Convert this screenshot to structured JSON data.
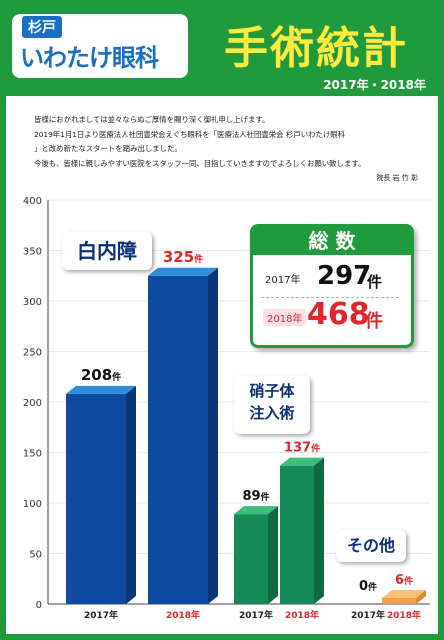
{
  "header": {
    "clinic_sub": "杉戸",
    "clinic_name": "いわたけ眼科",
    "title": "手術統計",
    "years": "2017年・2018年"
  },
  "intro": {
    "lines": [
      "皆様におかれましては並々ならぬご厚情を賜り深く御礼申し上げます。",
      "2019年1月1日より医療法人社団豊栄会えぐち眼科を「医療法人社団豊栄会 杉戸いわたけ眼科",
      "」と改め新たなスタートを踏み出しました。",
      "今後も、皆様に親しみやすい医院をスタッフ一同、目指していきますのでよろしくお願い致します。"
    ],
    "signature": "院長 岩 竹 彰"
  },
  "totals": {
    "title": "総 数",
    "rows": [
      {
        "year": "2017年",
        "value": "297",
        "unit": "件"
      },
      {
        "year": "2018年",
        "value": "468",
        "unit": "件"
      }
    ]
  },
  "colors": {
    "green": "#1f9a3c",
    "blue_front": "#0d4aa0",
    "blue_top": "#2f8ed8",
    "teal_front": "#138a57",
    "teal_top": "#3cbf7b",
    "orange": "#f0a040",
    "red": "#e3242b",
    "navy": "#0b2f78"
  },
  "chart_data": {
    "type": "bar",
    "ylim": [
      0,
      400
    ],
    "yticks": [
      "0",
      "50",
      "100",
      "150",
      "200",
      "250",
      "300",
      "350",
      "400"
    ],
    "groups": [
      {
        "name": "白内障",
        "years": [
          "2017年",
          "2018年"
        ],
        "values": [
          208,
          325
        ],
        "labels": [
          "208",
          "325"
        ]
      },
      {
        "name": "硝子体注入術",
        "name_lines": [
          "硝子体",
          "注入術"
        ],
        "years": [
          "2017年",
          "2018年"
        ],
        "values": [
          89,
          137
        ],
        "labels": [
          "89",
          "137"
        ]
      },
      {
        "name": "その他",
        "years": [
          "2017年",
          "2018年"
        ],
        "values": [
          0,
          6
        ],
        "labels": [
          "0",
          "6"
        ]
      }
    ],
    "unit": "件"
  }
}
